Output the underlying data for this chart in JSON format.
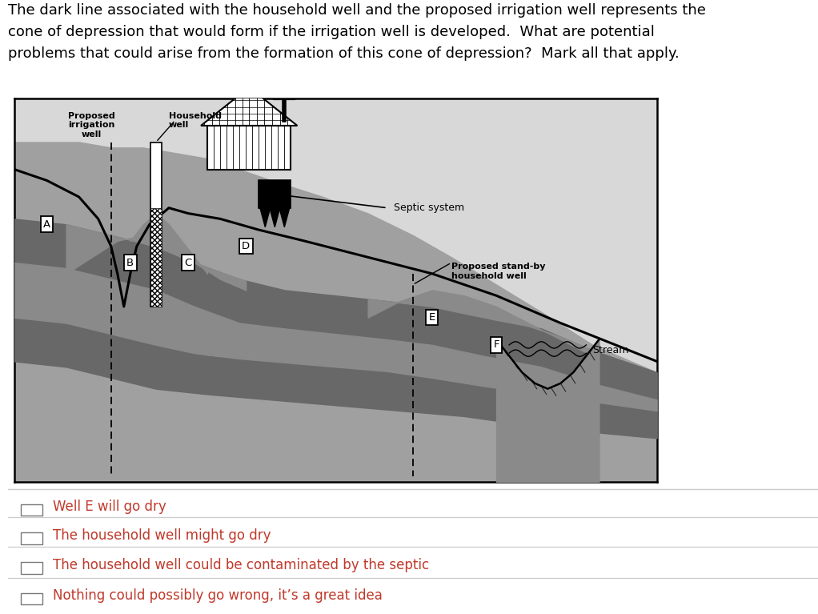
{
  "title_text": "The dark line associated with the household well and the proposed irrigation well represents the\ncone of depression that would form if the irrigation well is developed.  What are potential\nproblems that could arise from the formation of this cone of depression?  Mark all that apply.",
  "title_fontsize": 13,
  "title_color": "#000000",
  "bg_color": "#ffffff",
  "option1": "Well E will go dry",
  "option2": "The household well might go dry",
  "option3": "The household well could be contaminated by the septic",
  "option4": "Nothing could possibly go wrong, it’s a great idea",
  "option_color": "#c0392b",
  "diagram_light_bg": "#d8d8d8",
  "diagram_medium": "#a8a8a8",
  "diagram_dark": "#707070",
  "diagram_darkest": "#4a4a4a"
}
